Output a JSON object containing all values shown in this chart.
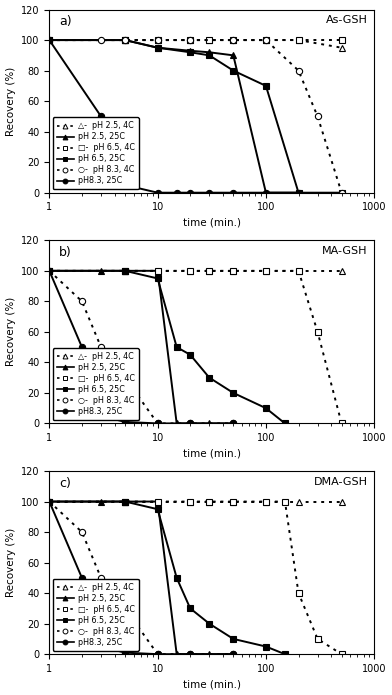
{
  "panels": [
    {
      "label": "a)",
      "title": "As-GSH",
      "series": [
        {
          "name": "pH 2.5, 4C",
          "style": "dotted",
          "marker": "triangle_open",
          "x": [
            1,
            5,
            10,
            20,
            30,
            50,
            100,
            200,
            500
          ],
          "y": [
            100,
            100,
            100,
            100,
            100,
            100,
            100,
            100,
            95
          ]
        },
        {
          "name": "pH 2.5, 25C",
          "style": "solid",
          "marker": "triangle_filled",
          "x": [
            1,
            5,
            10,
            20,
            30,
            50,
            100,
            200
          ],
          "y": [
            100,
            100,
            95,
            93,
            92,
            90,
            0,
            0
          ]
        },
        {
          "name": "pH 6.5, 4C",
          "style": "dotted",
          "marker": "square_open",
          "x": [
            1,
            5,
            10,
            20,
            30,
            50,
            100,
            200,
            500
          ],
          "y": [
            100,
            100,
            100,
            100,
            100,
            100,
            100,
            100,
            100
          ]
        },
        {
          "name": "pH 6.5, 25C",
          "style": "solid",
          "marker": "square_filled",
          "x": [
            1,
            5,
            10,
            20,
            30,
            50,
            100,
            200,
            500
          ],
          "y": [
            100,
            100,
            95,
            92,
            90,
            80,
            70,
            0,
            0
          ]
        },
        {
          "name": "pH 8.3, 4C",
          "style": "dotted",
          "marker": "circle_open",
          "x": [
            1,
            3,
            5,
            10,
            20,
            50,
            100,
            200,
            300,
            500
          ],
          "y": [
            100,
            100,
            100,
            100,
            100,
            100,
            100,
            80,
            50,
            0
          ]
        },
        {
          "name": "pH8.3, 25C",
          "style": "solid",
          "marker": "circle_filled",
          "x": [
            1,
            3,
            5,
            10,
            15,
            20,
            30,
            50,
            100,
            200
          ],
          "y": [
            100,
            50,
            5,
            0,
            0,
            0,
            0,
            0,
            0,
            0
          ]
        }
      ]
    },
    {
      "label": "b)",
      "title": "MA-GSH",
      "series": [
        {
          "name": "pH 2.5, 4C",
          "style": "dotted",
          "marker": "triangle_open",
          "x": [
            1,
            5,
            10,
            20,
            30,
            50,
            100,
            200,
            500
          ],
          "y": [
            100,
            100,
            100,
            100,
            100,
            100,
            100,
            100,
            100
          ]
        },
        {
          "name": "pH 2.5, 25C",
          "style": "solid",
          "marker": "triangle_filled",
          "x": [
            1,
            3,
            5,
            10,
            15,
            20,
            30,
            50
          ],
          "y": [
            100,
            100,
            100,
            100,
            0,
            0,
            0,
            0
          ]
        },
        {
          "name": "pH 6.5, 4C",
          "style": "dotted",
          "marker": "square_open",
          "x": [
            1,
            5,
            10,
            20,
            30,
            50,
            100,
            200,
            300,
            500
          ],
          "y": [
            100,
            100,
            100,
            100,
            100,
            100,
            100,
            100,
            60,
            0
          ]
        },
        {
          "name": "pH 6.5, 25C",
          "style": "solid",
          "marker": "square_filled",
          "x": [
            1,
            5,
            10,
            15,
            20,
            30,
            50,
            100,
            150
          ],
          "y": [
            100,
            100,
            95,
            50,
            45,
            30,
            20,
            10,
            0
          ]
        },
        {
          "name": "pH 8.3, 4C",
          "style": "dotted",
          "marker": "circle_open",
          "x": [
            1,
            2,
            3,
            5,
            10,
            20,
            50
          ],
          "y": [
            100,
            80,
            50,
            30,
            0,
            0,
            0
          ]
        },
        {
          "name": "pH8.3, 25C",
          "style": "solid",
          "marker": "circle_filled",
          "x": [
            1,
            2,
            3,
            5,
            10,
            20,
            50
          ],
          "y": [
            100,
            50,
            5,
            1,
            0,
            0,
            0
          ]
        }
      ]
    },
    {
      "label": "c)",
      "title": "DMA-GSH",
      "series": [
        {
          "name": "pH 2.5, 4C",
          "style": "dotted",
          "marker": "triangle_open",
          "x": [
            1,
            5,
            10,
            20,
            30,
            50,
            100,
            200,
            500
          ],
          "y": [
            100,
            100,
            100,
            100,
            100,
            100,
            100,
            100,
            100
          ]
        },
        {
          "name": "pH 2.5, 25C",
          "style": "solid",
          "marker": "triangle_filled",
          "x": [
            1,
            3,
            5,
            10,
            15,
            20,
            30,
            50
          ],
          "y": [
            100,
            100,
            100,
            100,
            0,
            0,
            0,
            0
          ]
        },
        {
          "name": "pH 6.5, 4C",
          "style": "dotted",
          "marker": "square_open",
          "x": [
            1,
            5,
            10,
            20,
            30,
            50,
            100,
            150,
            200,
            300,
            500
          ],
          "y": [
            100,
            100,
            100,
            100,
            100,
            100,
            100,
            100,
            40,
            10,
            0
          ]
        },
        {
          "name": "pH 6.5, 25C",
          "style": "solid",
          "marker": "square_filled",
          "x": [
            1,
            5,
            10,
            15,
            20,
            30,
            50,
            100,
            150
          ],
          "y": [
            100,
            100,
            95,
            50,
            30,
            20,
            10,
            5,
            0
          ]
        },
        {
          "name": "pH 8.3, 4C",
          "style": "dotted",
          "marker": "circle_open",
          "x": [
            1,
            2,
            3,
            5,
            10,
            20,
            50
          ],
          "y": [
            100,
            80,
            50,
            30,
            0,
            0,
            0
          ]
        },
        {
          "name": "pH8.3, 25C",
          "style": "solid",
          "marker": "circle_filled",
          "x": [
            1,
            2,
            3,
            5,
            10,
            20,
            50
          ],
          "y": [
            100,
            50,
            5,
            1,
            0,
            0,
            0
          ]
        }
      ]
    }
  ],
  "ylim": [
    0,
    120
  ],
  "yticks": [
    0,
    20,
    40,
    60,
    80,
    100,
    120
  ],
  "xlim": [
    1,
    1000
  ],
  "xlabel": "time (min.)",
  "ylabel": "Recovery (%)",
  "legend_entries": [
    {
      "idx": 0,
      "label": "△-  pH 2.5, 4C"
    },
    {
      "idx": 1,
      "label": "pH 2.5, 25C"
    },
    {
      "idx": 2,
      "label": "□-  pH 6.5, 4C"
    },
    {
      "idx": 3,
      "label": "pH 6.5, 25C"
    },
    {
      "idx": 4,
      "label": "○-  pH 8.3, 4C"
    },
    {
      "idx": 5,
      "label": "pH8.3, 25C"
    }
  ]
}
